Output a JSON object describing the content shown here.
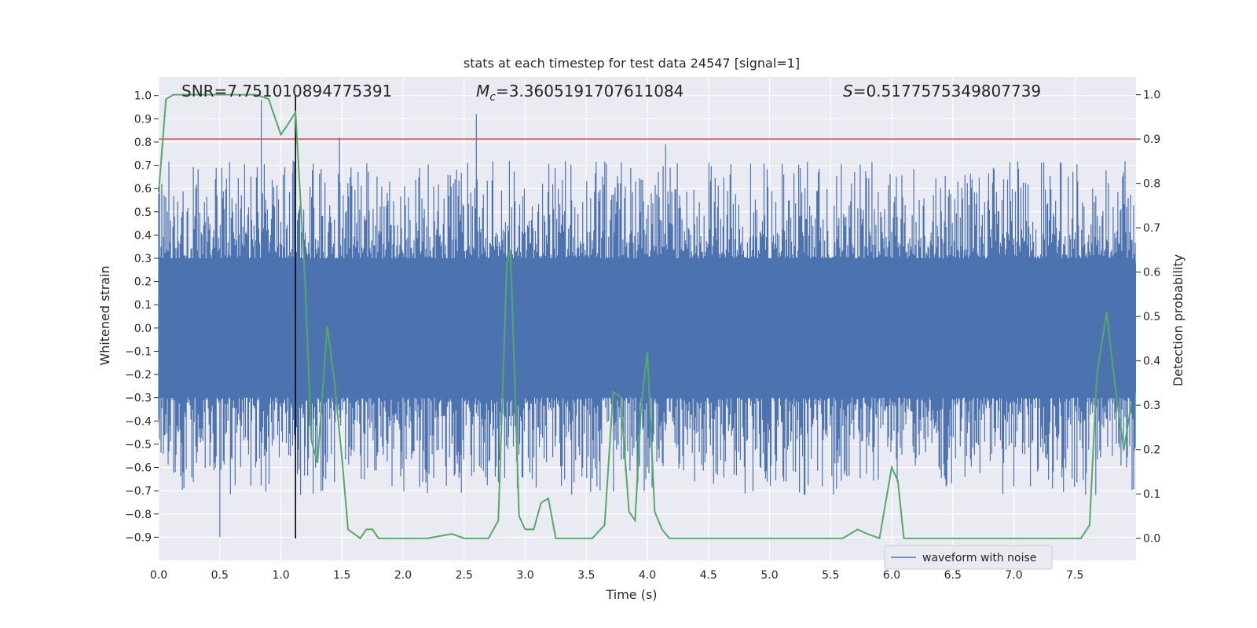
{
  "chart_data": {
    "type": "line",
    "title": "stats at each timestep for test data 24547 [signal=1]",
    "xlabel": "Time (s)",
    "ylabel": "Whitened strain",
    "y2label": "Detection probability",
    "xlim": [
      0.0,
      8.0
    ],
    "ylim": [
      -1.0,
      1.08
    ],
    "y2lim": [
      -0.05,
      1.04
    ],
    "xticks": [
      "0.0",
      "0.5",
      "1.0",
      "1.5",
      "2.0",
      "2.5",
      "3.0",
      "3.5",
      "4.0",
      "4.5",
      "5.0",
      "5.5",
      "6.0",
      "6.5",
      "7.0",
      "7.5"
    ],
    "xtick_values": [
      0.0,
      0.5,
      1.0,
      1.5,
      2.0,
      2.5,
      3.0,
      3.5,
      4.0,
      4.5,
      5.0,
      5.5,
      6.0,
      6.5,
      7.0,
      7.5
    ],
    "yticks": [
      "1.0",
      "0.9",
      "0.8",
      "0.7",
      "0.6",
      "0.5",
      "0.4",
      "0.3",
      "0.2",
      "0.1",
      "0.0",
      "−0.1",
      "−0.2",
      "−0.3",
      "−0.4",
      "−0.5",
      "−0.6",
      "−0.7",
      "−0.8",
      "−0.9"
    ],
    "ytick_values": [
      1.0,
      0.9,
      0.8,
      0.7,
      0.6,
      0.5,
      0.4,
      0.3,
      0.2,
      0.1,
      0.0,
      -0.1,
      -0.2,
      -0.3,
      -0.4,
      -0.5,
      -0.6,
      -0.7,
      -0.8,
      -0.9
    ],
    "y2ticks": [
      "1.0",
      "0.9",
      "0.8",
      "0.7",
      "0.6",
      "0.5",
      "0.4",
      "0.3",
      "0.2",
      "0.1",
      "0.0"
    ],
    "y2tick_values": [
      1.0,
      0.9,
      0.8,
      0.7,
      0.6,
      0.5,
      0.4,
      0.3,
      0.2,
      0.1,
      0.0
    ],
    "annotations": {
      "snr": "SNR=7.751010894775391",
      "mc_symbol": "M",
      "mc_sub": "c",
      "mc_value": "=3.3605191707611084",
      "s_symbol": "S",
      "s_value": "=0.5177575349807739"
    },
    "event_time": 1.12,
    "threshold_probability": 0.9,
    "waveform_envelope": {
      "name": "waveform with noise",
      "duration": 8.0,
      "core_upper": 0.28,
      "core_lower": -0.28,
      "notable_spikes": [
        {
          "t": 0.5,
          "v": -0.9
        },
        {
          "t": 0.84,
          "v": 0.98
        },
        {
          "t": 1.1,
          "v": 0.72
        },
        {
          "t": 1.48,
          "v": 0.82
        },
        {
          "t": 2.6,
          "v": 0.92
        },
        {
          "t": 4.15,
          "v": 0.79
        },
        {
          "t": 7.4,
          "v": -0.6
        }
      ]
    },
    "series": [
      {
        "name": "detection probability",
        "color": "#55a868",
        "x": [
          0.0,
          0.06,
          0.12,
          0.3,
          0.6,
          0.8,
          0.9,
          0.95,
          1.0,
          1.05,
          1.12,
          1.2,
          1.25,
          1.3,
          1.38,
          1.44,
          1.5,
          1.55,
          1.6,
          1.65,
          1.7,
          1.75,
          1.8,
          1.9,
          2.0,
          2.2,
          2.4,
          2.5,
          2.6,
          2.7,
          2.78,
          2.85,
          2.88,
          2.95,
          3.0,
          3.07,
          3.13,
          3.19,
          3.25,
          3.3,
          3.4,
          3.55,
          3.65,
          3.72,
          3.78,
          3.85,
          3.9,
          3.95,
          4.0,
          4.06,
          4.12,
          4.18,
          4.25,
          4.35,
          4.5,
          4.7,
          5.0,
          5.3,
          5.6,
          5.72,
          5.8,
          5.9,
          6.0,
          6.05,
          6.1,
          6.15,
          6.2,
          6.3,
          6.4,
          6.6,
          7.0,
          7.4,
          7.55,
          7.62,
          7.68,
          7.76,
          7.83,
          7.9,
          7.96
        ],
        "y": [
          0.78,
          0.99,
          1.0,
          1.0,
          1.0,
          1.0,
          0.99,
          0.95,
          0.91,
          0.93,
          0.96,
          0.57,
          0.22,
          0.17,
          0.48,
          0.35,
          0.18,
          0.02,
          0.01,
          0.0,
          0.02,
          0.02,
          0.0,
          0.0,
          0.0,
          0.0,
          0.01,
          0.0,
          0.0,
          0.0,
          0.04,
          0.62,
          0.65,
          0.05,
          0.02,
          0.02,
          0.08,
          0.09,
          0.0,
          0.0,
          0.0,
          0.0,
          0.03,
          0.33,
          0.32,
          0.06,
          0.04,
          0.3,
          0.42,
          0.06,
          0.02,
          0.0,
          0.0,
          0.0,
          0.0,
          0.0,
          0.0,
          0.0,
          0.0,
          0.02,
          0.01,
          0.0,
          0.16,
          0.13,
          0.0,
          0.0,
          0.0,
          0.0,
          0.0,
          0.0,
          0.0,
          0.0,
          0.0,
          0.03,
          0.37,
          0.51,
          0.34,
          0.2,
          0.3
        ]
      }
    ],
    "legend": {
      "label": "waveform with noise",
      "placement": "lower-right"
    },
    "colors": {
      "waveform": "#4c72b0",
      "probability": "#55a868",
      "threshold": "#c44e52",
      "event_line": "#000000",
      "background": "#eaeaf2",
      "grid": "#ffffff"
    }
  }
}
